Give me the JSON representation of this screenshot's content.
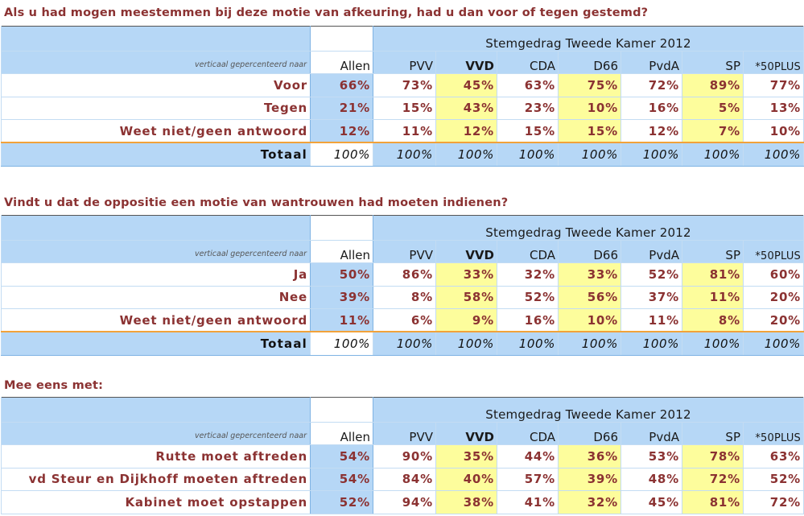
{
  "tables": [
    {
      "title": "Als u had mogen meestemmen bij deze motie van afkeuring, had u dan voor of tegen gestemd?",
      "caption": "Stemgedrag Tweede Kamer 2012",
      "label_header": "verticaal gepercenteerd naar",
      "columns": [
        "Allen",
        "PVV",
        "VVD",
        "CDA",
        "D66",
        "PvdA",
        "SP",
        "*50PLUS"
      ],
      "rows": [
        {
          "label": "Voor",
          "values": [
            "66%",
            "73%",
            "45%",
            "63%",
            "75%",
            "72%",
            "89%",
            "77%"
          ]
        },
        {
          "label": "Tegen",
          "values": [
            "21%",
            "15%",
            "43%",
            "23%",
            "10%",
            "16%",
            "5%",
            "13%"
          ]
        },
        {
          "label": "Weet niet/geen antwoord",
          "values": [
            "12%",
            "11%",
            "12%",
            "15%",
            "15%",
            "12%",
            "7%",
            "10%"
          ]
        }
      ],
      "total": {
        "label": "Totaal",
        "values": [
          "100%",
          "100%",
          "100%",
          "100%",
          "100%",
          "100%",
          "100%",
          "100%"
        ]
      }
    },
    {
      "title": "Vindt u dat de oppositie een motie van wantrouwen had moeten indienen?",
      "caption": "Stemgedrag Tweede Kamer 2012",
      "label_header": "verticaal gepercenteerd naar",
      "columns": [
        "Allen",
        "PVV",
        "VVD",
        "CDA",
        "D66",
        "PvdA",
        "SP",
        "*50PLUS"
      ],
      "rows": [
        {
          "label": "Ja",
          "values": [
            "50%",
            "86%",
            "33%",
            "32%",
            "33%",
            "52%",
            "81%",
            "60%"
          ]
        },
        {
          "label": "Nee",
          "values": [
            "39%",
            "8%",
            "58%",
            "52%",
            "56%",
            "37%",
            "11%",
            "20%"
          ]
        },
        {
          "label": "Weet niet/geen antwoord",
          "values": [
            "11%",
            "6%",
            "9%",
            "16%",
            "10%",
            "11%",
            "8%",
            "20%"
          ]
        }
      ],
      "total": {
        "label": "Totaal",
        "values": [
          "100%",
          "100%",
          "100%",
          "100%",
          "100%",
          "100%",
          "100%",
          "100%"
        ]
      }
    },
    {
      "title": "Mee eens met:",
      "caption": "Stemgedrag Tweede Kamer 2012",
      "label_header": "verticaal gepercenteerd naar",
      "columns": [
        "Allen",
        "PVV",
        "VVD",
        "CDA",
        "D66",
        "PvdA",
        "SP",
        "*50PLUS"
      ],
      "rows": [
        {
          "label": "Rutte moet aftreden",
          "values": [
            "54%",
            "90%",
            "35%",
            "44%",
            "36%",
            "53%",
            "78%",
            "63%"
          ]
        },
        {
          "label": "vd Steur en Dijkhoff moeten aftreden",
          "values": [
            "54%",
            "84%",
            "40%",
            "57%",
            "39%",
            "48%",
            "72%",
            "52%"
          ]
        },
        {
          "label": "Kabinet moet opstappen",
          "values": [
            "52%",
            "94%",
            "38%",
            "41%",
            "32%",
            "45%",
            "81%",
            "72%"
          ]
        }
      ]
    }
  ],
  "colors": {
    "title_text": "#8b3232",
    "header_blue": "#b6d7f6",
    "highlight_yellow": "#fdfd9c",
    "separator_orange": "#f2a23a"
  }
}
